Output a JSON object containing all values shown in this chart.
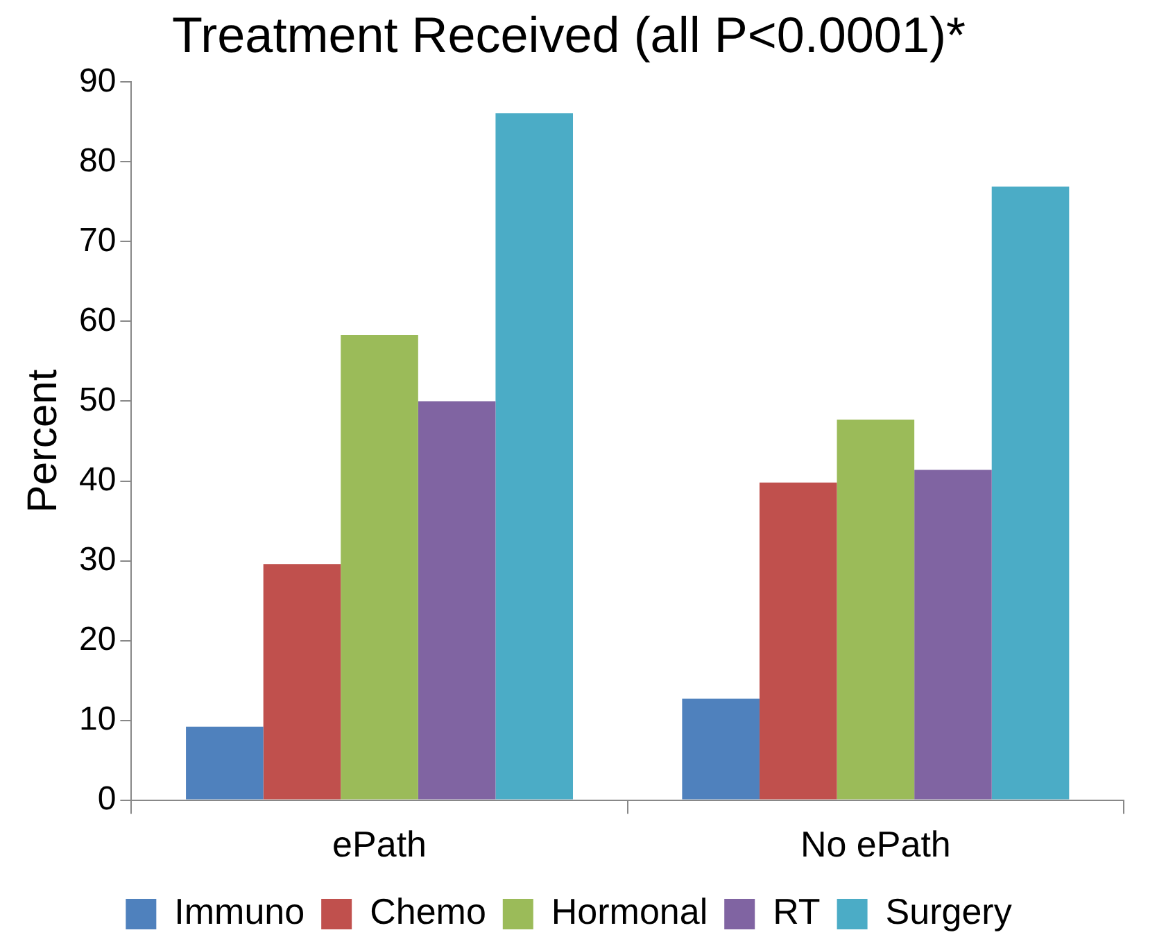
{
  "chart_data": {
    "type": "bar",
    "title": "Treatment Received (all P<0.0001)*",
    "ylabel": "Percent",
    "categories": [
      "ePath",
      "No ePath"
    ],
    "series": [
      {
        "name": "Immuno",
        "color": "#4f81bd",
        "values": [
          9.2,
          12.7
        ]
      },
      {
        "name": "Chemo",
        "color": "#c0504d",
        "values": [
          29.6,
          39.8
        ]
      },
      {
        "name": "Hormonal",
        "color": "#9bbb59",
        "values": [
          58.3,
          47.7
        ]
      },
      {
        "name": "RT",
        "color": "#8064a2",
        "values": [
          50,
          41.4
        ]
      },
      {
        "name": "Surgery",
        "color": "#4bacc6",
        "values": [
          86.1,
          76.9
        ]
      }
    ],
    "ylim": [
      0,
      90
    ],
    "yticks": [
      0,
      10,
      20,
      30,
      40,
      50,
      60,
      70,
      80,
      90
    ],
    "grid": false,
    "legend": "bottom"
  }
}
